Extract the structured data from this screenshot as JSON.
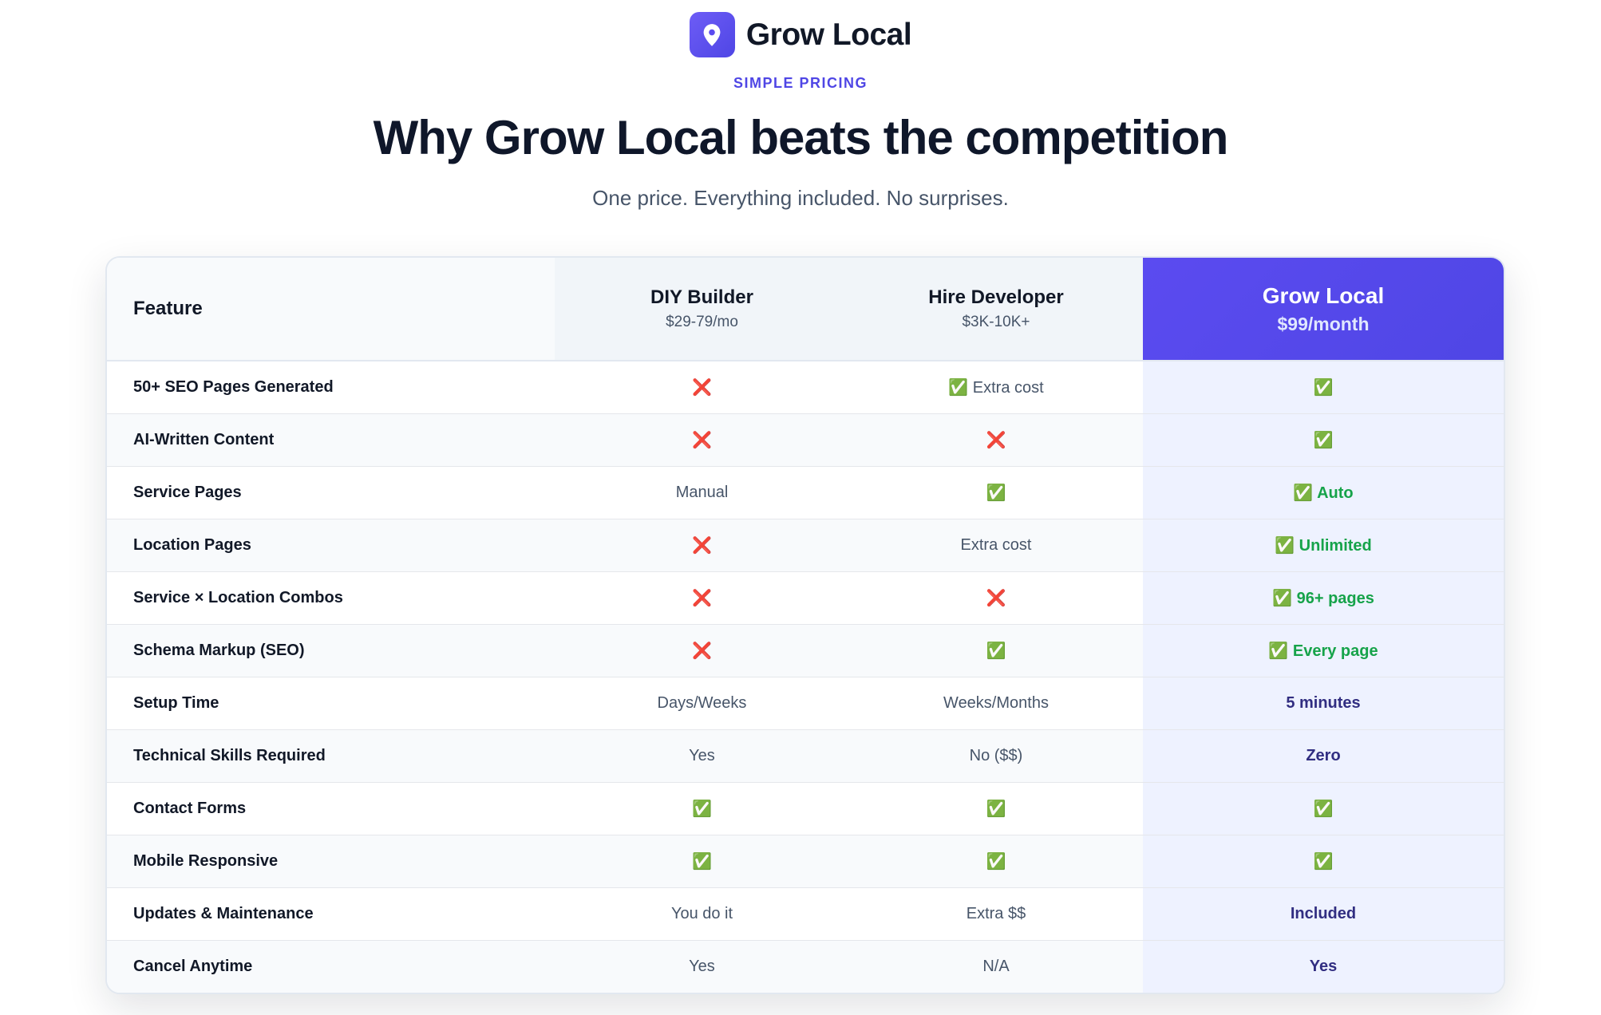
{
  "header": {
    "brand": "Grow Local",
    "eyebrow": "SIMPLE PRICING",
    "title": "Why Grow Local beats the competition",
    "subtitle": "One price. Everything included. No surprises."
  },
  "table": {
    "columns": [
      {
        "name": "Feature"
      },
      {
        "name": "DIY Builder",
        "price": "$29-79/mo"
      },
      {
        "name": "Hire Developer",
        "price": "$3K-10K+"
      },
      {
        "name": "Grow Local",
        "price": "$99/month"
      }
    ],
    "rows": [
      [
        "50+ SEO Pages Generated",
        "❌",
        "✅ Extra cost",
        "✅"
      ],
      [
        "AI-Written Content",
        "❌",
        "❌",
        "✅"
      ],
      [
        "Service Pages",
        "Manual",
        "✅",
        "✅ Auto"
      ],
      [
        "Location Pages",
        "❌",
        "Extra cost",
        "✅ Unlimited"
      ],
      [
        "Service × Location Combos",
        "❌",
        "❌",
        "✅ 96+ pages"
      ],
      [
        "Schema Markup (SEO)",
        "❌",
        "✅",
        "✅ Every page"
      ],
      [
        "Setup Time",
        "Days/Weeks",
        "Weeks/Months",
        "5 minutes"
      ],
      [
        "Technical Skills Required",
        "Yes",
        "No ($$)",
        "Zero"
      ],
      [
        "Contact Forms",
        "✅",
        "✅",
        "✅"
      ],
      [
        "Mobile Responsive",
        "✅",
        "✅",
        "✅"
      ],
      [
        "Updates & Maintenance",
        "You do it",
        "Extra $$",
        "Included"
      ],
      [
        "Cancel Anytime",
        "Yes",
        "N/A",
        "Yes"
      ]
    ]
  }
}
